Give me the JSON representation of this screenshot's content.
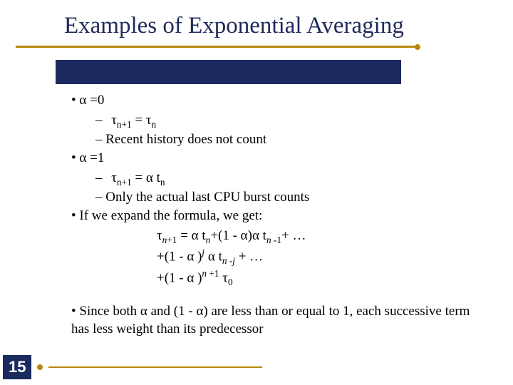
{
  "colors": {
    "title_color": "#1f2a5a",
    "rule_color": "#b8860b",
    "bar_color": "#1a2a5e",
    "body_text": "#000000",
    "background": "#ffffff"
  },
  "typography": {
    "title_fontsize_pt": 25,
    "body_fontsize_pt": 14,
    "font_family": "Times New Roman"
  },
  "title": "Examples of Exponential Averaging",
  "bullets": {
    "b1": "α =0",
    "b1a_html": "τ<sub>n+1</sub> = τ<sub>n</sub>",
    "b1b": "Recent history does not count",
    "b2": "α =1",
    "b2a_html": "τ<sub>n+1</sub> = α t<sub>n</sub>",
    "b2b": "Only the actual last CPU burst counts",
    "b3": "If we expand the formula, we get:",
    "b3f1_html": "τ<sub><i>n</i>+1</sub> = α t<sub><i>n</i></sub>+(1 - α)α t<sub><i>n</i> -1</sub>+ …",
    "b3f2_html": "+(1 - α )<sup><i>j</i></sup> α t<sub><i>n</i> -<i>j</i></sub> + …",
    "b3f3_html": "+(1 - α )<sup><i>n</i> +1</sup> τ<sub>0</sub>",
    "b4": "Since both α and (1 - α) are less than or equal to 1, each successive term has less weight than its predecessor"
  },
  "page_number": "15"
}
